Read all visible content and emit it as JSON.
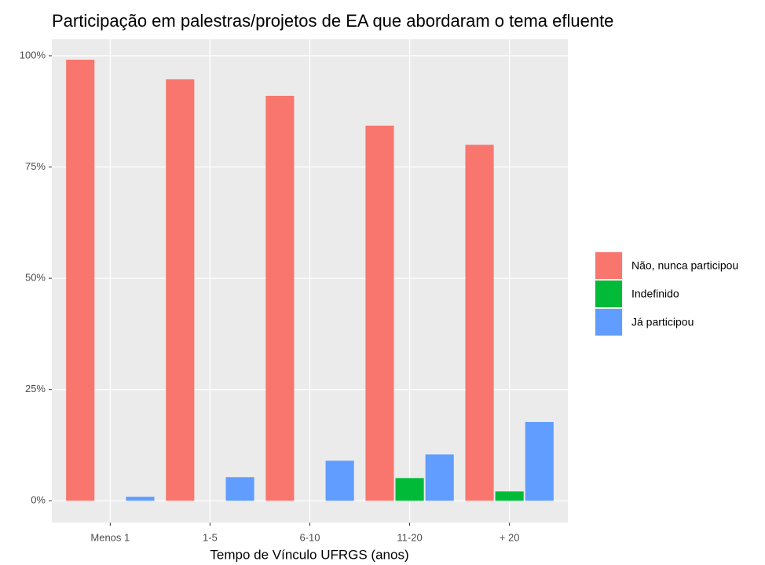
{
  "chart_data": {
    "type": "bar",
    "title": "Participação em palestras/projetos de EA que abordaram o tema efluente",
    "x_label": "Tempo de Vínculo UFRGS (anos)",
    "categories": [
      "Menos 1",
      "1-5",
      "6-10",
      "11-20",
      "+ 20"
    ],
    "series": [
      {
        "name": "Não, nunca participou",
        "color": "#F8766D",
        "values": [
          99.1,
          94.7,
          91.0,
          84.3,
          80.0
        ]
      },
      {
        "name": "Indefinido",
        "color": "#00BA38",
        "values": [
          null,
          null,
          null,
          5.1,
          2.1
        ]
      },
      {
        "name": "Já participou",
        "color": "#619CFF",
        "values": [
          0.9,
          5.3,
          9.0,
          10.4,
          17.7
        ]
      }
    ],
    "ylim": [
      -4.9,
      103.7
    ],
    "yticks": [
      {
        "value": 0,
        "label": "0%"
      },
      {
        "value": 25,
        "label": "25%"
      },
      {
        "value": 50,
        "label": "50%"
      },
      {
        "value": 75,
        "label": "75%"
      },
      {
        "value": 100,
        "label": "100%"
      }
    ],
    "grid": true,
    "legend": "right"
  }
}
